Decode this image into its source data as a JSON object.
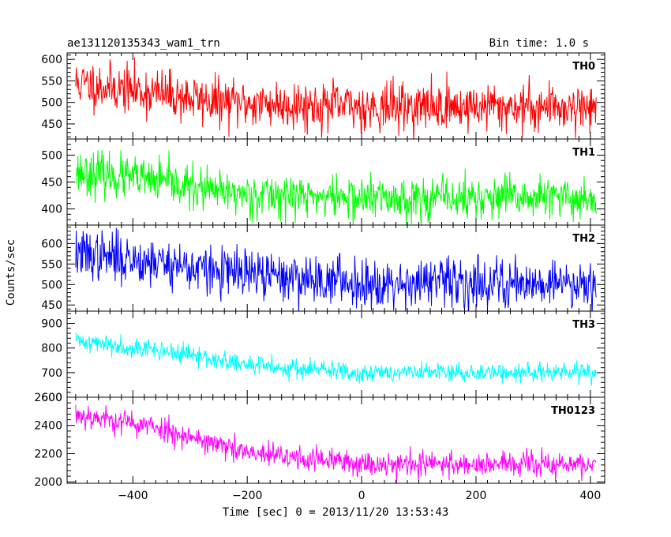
{
  "header": {
    "title": "ae131120135343_wam1_trn",
    "bin_time": "Bin time: 1.0 s"
  },
  "chart_data": {
    "type": "line",
    "xlabel": "Time [sec] 0 = 2013/11/20 13:53:43",
    "ylabel": "Counts/sec",
    "xlim": [
      -515,
      425
    ],
    "x_range": [
      -500,
      410
    ],
    "x_step": 1,
    "x_ticks": [
      -400,
      -200,
      0,
      200,
      400
    ],
    "panels": [
      {
        "name": "TH0",
        "color": "#ff0000",
        "ylim": [
          415,
          615
        ],
        "y_ticks": [
          450,
          500,
          550,
          600
        ],
        "trend": [
          [
            -500,
            545
          ],
          [
            -350,
            520
          ],
          [
            -250,
            500
          ],
          [
            0,
            490
          ],
          [
            410,
            490
          ]
        ],
        "noise": 28,
        "seed": 11
      },
      {
        "name": "TH1",
        "color": "#00ff00",
        "ylim": [
          370,
          530
        ],
        "y_ticks": [
          400,
          450,
          500
        ],
        "trend": [
          [
            -500,
            470
          ],
          [
            -350,
            450
          ],
          [
            -250,
            430
          ],
          [
            0,
            420
          ],
          [
            410,
            420
          ]
        ],
        "noise": 20,
        "seed": 23
      },
      {
        "name": "TH2",
        "color": "#0000ff",
        "ylim": [
          435,
          645
        ],
        "y_ticks": [
          450,
          500,
          550,
          600
        ],
        "trend": [
          [
            -500,
            575
          ],
          [
            -350,
            555
          ],
          [
            -250,
            530
          ],
          [
            0,
            505
          ],
          [
            410,
            505
          ]
        ],
        "noise": 30,
        "seed": 37
      },
      {
        "name": "TH3",
        "color": "#00ffff",
        "ylim": [
          600,
          950
        ],
        "y_ticks": [
          600,
          700,
          800,
          900
        ],
        "trend": [
          [
            -500,
            830
          ],
          [
            -350,
            790
          ],
          [
            -200,
            730
          ],
          [
            0,
            700
          ],
          [
            410,
            700
          ]
        ],
        "noise": 20,
        "seed": 41
      },
      {
        "name": "TH0123",
        "color": "#ff00ff",
        "ylim": [
          1990,
          2600
        ],
        "y_ticks": [
          2000,
          2200,
          2400,
          2600
        ],
        "trend": [
          [
            -500,
            2480
          ],
          [
            -350,
            2380
          ],
          [
            -200,
            2200
          ],
          [
            0,
            2130
          ],
          [
            410,
            2120
          ]
        ],
        "noise": 45,
        "seed": 53
      }
    ]
  }
}
